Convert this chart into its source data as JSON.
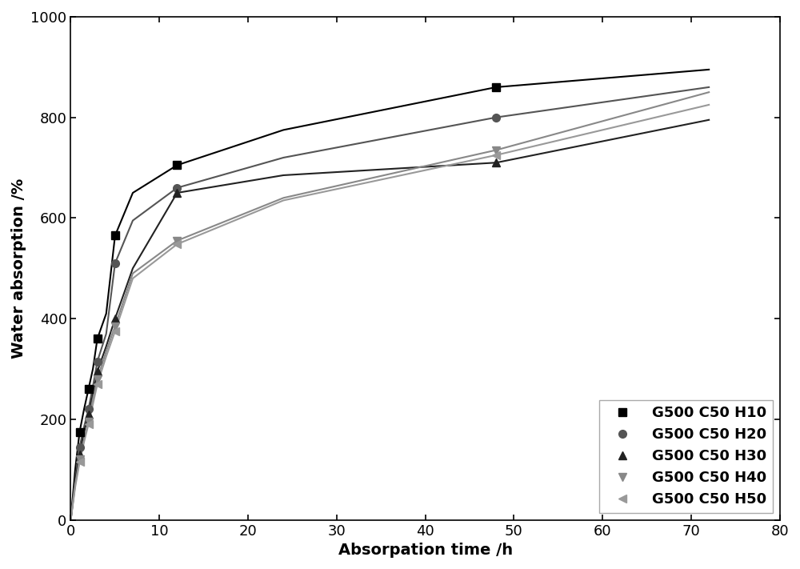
{
  "series": [
    {
      "label": "G500 C50 H10",
      "color": "#000000",
      "marker": "s",
      "markersize": 7,
      "markevery": [
        2,
        4,
        6,
        8,
        10,
        12,
        14
      ],
      "x": [
        0,
        0.5,
        1,
        1.5,
        2,
        2.5,
        3,
        4,
        5,
        7,
        12,
        24,
        48,
        72
      ],
      "y": [
        0,
        100,
        175,
        220,
        260,
        300,
        360,
        410,
        565,
        650,
        705,
        775,
        860,
        895
      ]
    },
    {
      "label": "G500 C50 H20",
      "color": "#555555",
      "marker": "o",
      "markersize": 7,
      "markevery": [
        2,
        4,
        6,
        8,
        10,
        12,
        14
      ],
      "x": [
        0,
        0.5,
        1,
        1.5,
        2,
        2.5,
        3,
        4,
        5,
        7,
        12,
        24,
        48,
        72
      ],
      "y": [
        0,
        80,
        145,
        185,
        220,
        265,
        315,
        370,
        510,
        595,
        660,
        720,
        800,
        860
      ]
    },
    {
      "label": "G500 C50 H30",
      "color": "#222222",
      "marker": "^",
      "markersize": 7,
      "markevery": [
        2,
        4,
        6,
        8,
        10,
        12,
        14
      ],
      "x": [
        0,
        0.5,
        1,
        1.5,
        2,
        2.5,
        3,
        4,
        5,
        7,
        12,
        24,
        48,
        72
      ],
      "y": [
        0,
        75,
        130,
        175,
        210,
        250,
        295,
        345,
        400,
        500,
        650,
        685,
        710,
        795
      ]
    },
    {
      "label": "G500 C50 H40",
      "color": "#888888",
      "marker": "v",
      "markersize": 7,
      "markevery": [
        2,
        4,
        6,
        8,
        10,
        12,
        14
      ],
      "x": [
        0,
        0.5,
        1,
        1.5,
        2,
        2.5,
        3,
        4,
        5,
        7,
        12,
        24,
        48,
        72
      ],
      "y": [
        0,
        70,
        120,
        160,
        195,
        240,
        280,
        335,
        385,
        490,
        555,
        640,
        735,
        850
      ]
    },
    {
      "label": "G500 C50 H50",
      "color": "#999999",
      "marker": "<",
      "markersize": 7,
      "markevery": [
        2,
        4,
        6,
        8,
        10,
        12,
        14
      ],
      "x": [
        0,
        0.5,
        1,
        1.5,
        2,
        2.5,
        3,
        4,
        5,
        7,
        12,
        24,
        48,
        72
      ],
      "y": [
        0,
        65,
        115,
        155,
        190,
        230,
        270,
        325,
        375,
        480,
        548,
        635,
        725,
        825
      ]
    }
  ],
  "xlabel": "Absorpation time /h",
  "ylabel": "Water absorption /%",
  "xlim": [
    0,
    80
  ],
  "ylim": [
    0,
    1000
  ],
  "xticks": [
    0,
    10,
    20,
    30,
    40,
    50,
    60,
    70,
    80
  ],
  "yticks": [
    0,
    200,
    400,
    600,
    800,
    1000
  ],
  "background_color": "#ffffff",
  "legend_loc": "lower right",
  "linewidth": 1.5,
  "font_size": 14,
  "tick_font_size": 13
}
